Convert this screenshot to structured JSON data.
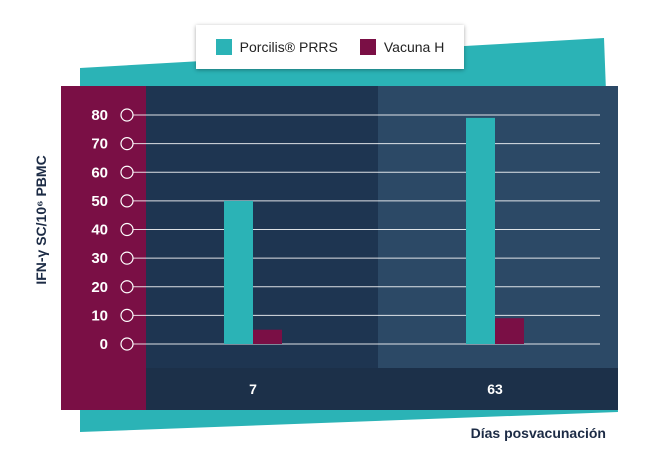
{
  "chart_data": {
    "type": "bar",
    "categories": [
      "7",
      "63"
    ],
    "series": [
      {
        "name": "Porcilis® PRRS",
        "values": [
          50,
          79
        ],
        "color": "#2bb3b6"
      },
      {
        "name": "Vacuna H",
        "values": [
          5,
          9
        ],
        "color": "#7a0f45"
      }
    ],
    "y_ticks": [
      "0",
      "10",
      "20",
      "30",
      "40",
      "50",
      "60",
      "70",
      "80"
    ],
    "ylim": [
      0,
      80
    ],
    "xlabel": "Días posvacunación",
    "ylabel": "IFN-γ SC/10⁶ PBMC",
    "legend_position": "top-center",
    "grid": true,
    "colors": {
      "axis_panel": "#7a0f45",
      "plot_left": "#1e3551",
      "plot_right": "#2c4966",
      "category_band": "#1c3049",
      "accent": "#2bb3b6"
    }
  }
}
